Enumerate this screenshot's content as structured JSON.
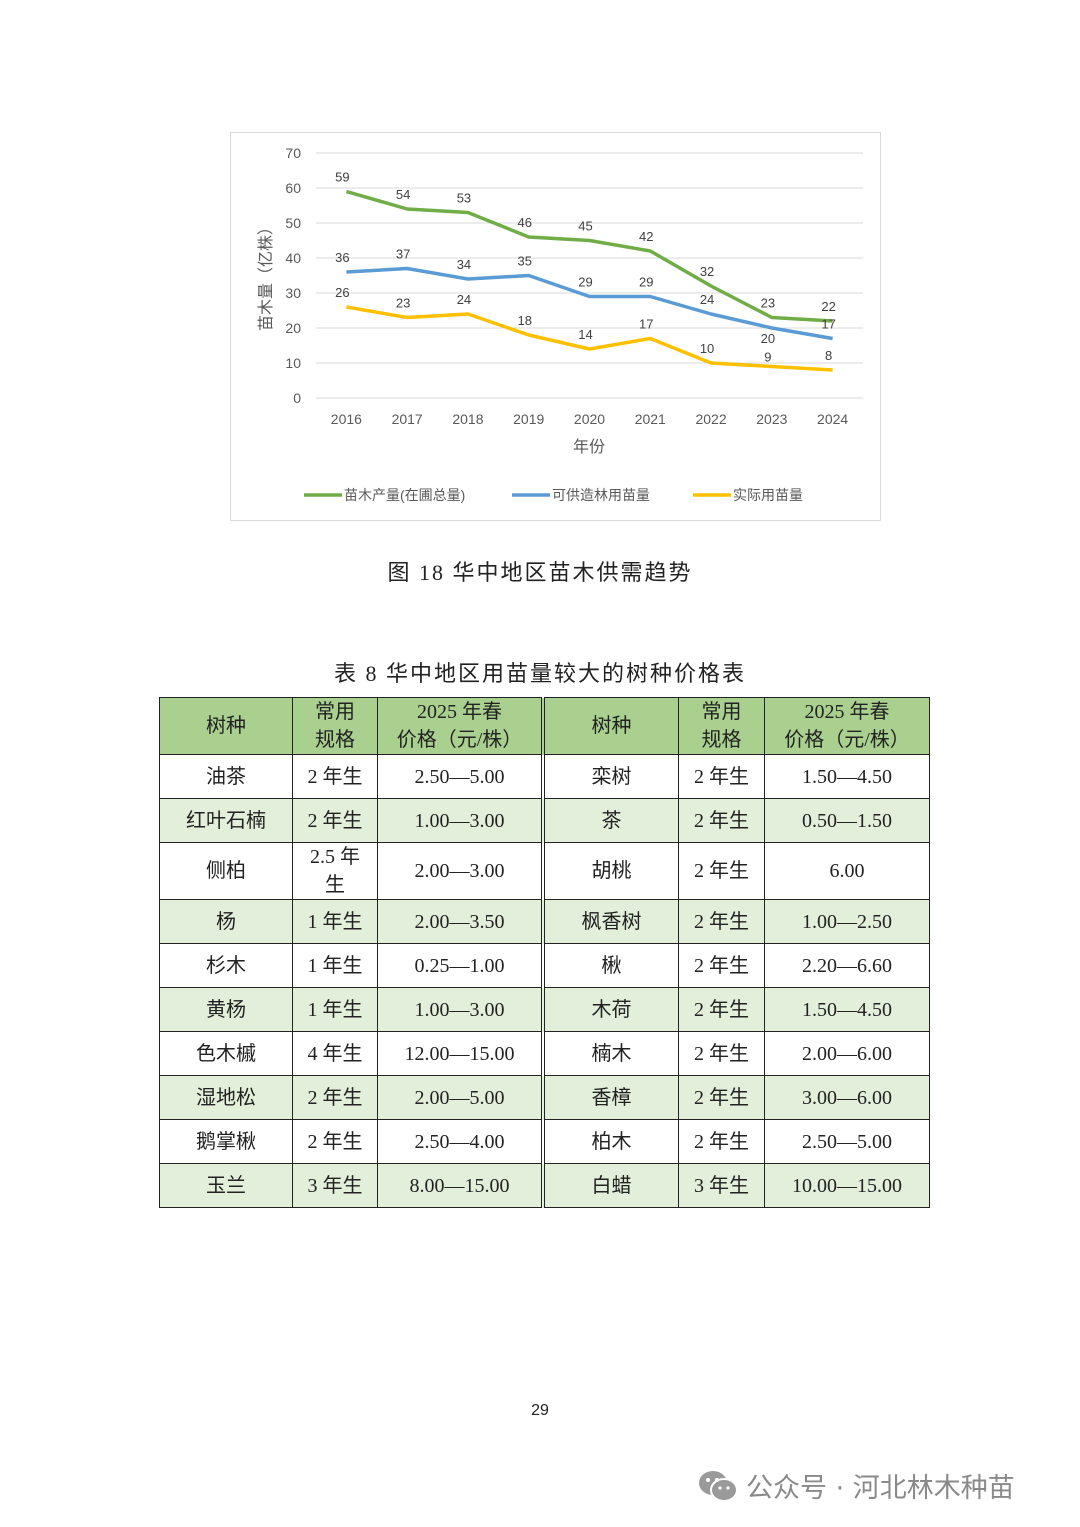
{
  "chart_data": {
    "type": "line",
    "x": [
      "2016",
      "2017",
      "2018",
      "2019",
      "2020",
      "2021",
      "2022",
      "2023",
      "2024"
    ],
    "xlabel": "年份",
    "ylabel": "苗木量（亿株）",
    "ylim": [
      0,
      70
    ],
    "yticks": [
      0,
      10,
      20,
      30,
      40,
      50,
      60,
      70
    ],
    "grid": true,
    "legend": "bottom",
    "series": [
      {
        "name": "苗木产量(在圃总量)",
        "color": "#70ad47",
        "values": [
          59,
          54,
          53,
          46,
          45,
          42,
          32,
          23,
          22
        ]
      },
      {
        "name": "可供造林用苗量",
        "color": "#5b9bd5",
        "values": [
          36,
          37,
          34,
          35,
          29,
          29,
          24,
          20,
          17
        ]
      },
      {
        "name": "实际用苗量",
        "color": "#ffc000",
        "values": [
          26,
          23,
          24,
          18,
          14,
          17,
          10,
          9,
          8
        ]
      }
    ]
  },
  "figure_caption": "图 18  华中地区苗木供需趋势",
  "table_caption": "表 8  华中地区用苗量较大的树种价格表",
  "table": {
    "headers": [
      "树种",
      "常用\n规格",
      "2025 年春\n价格（元/株）",
      "树种",
      "常用\n规格",
      "2025 年春\n价格（元/株）"
    ],
    "rows": [
      [
        "油茶",
        "2 年生",
        "2.50—5.00",
        "栾树",
        "2 年生",
        "1.50—4.50"
      ],
      [
        "红叶石楠",
        "2 年生",
        "1.00—3.00",
        "茶",
        "2 年生",
        "0.50—1.50"
      ],
      [
        "侧柏",
        "2.5 年\n生",
        "2.00—3.00",
        "胡桃",
        "2 年生",
        "6.00"
      ],
      [
        "杨",
        "1 年生",
        "2.00—3.50",
        "枫香树",
        "2 年生",
        "1.00—2.50"
      ],
      [
        "杉木",
        "1 年生",
        "0.25—1.00",
        "楸",
        "2 年生",
        "2.20—6.60"
      ],
      [
        "黄杨",
        "1 年生",
        "1.00—3.00",
        "木荷",
        "2 年生",
        "1.50—4.50"
      ],
      [
        "色木槭",
        "4 年生",
        "12.00—15.00",
        "楠木",
        "2 年生",
        "2.00—6.00"
      ],
      [
        "湿地松",
        "2 年生",
        "2.00—5.00",
        "香樟",
        "2 年生",
        "3.00—6.00"
      ],
      [
        "鹅掌楸",
        "2 年生",
        "2.50—4.00",
        "柏木",
        "2 年生",
        "2.50—5.00"
      ],
      [
        "玉兰",
        "3 年生",
        "8.00—15.00",
        "白蜡",
        "3 年生",
        "10.00—15.00"
      ]
    ]
  },
  "page_number": "29",
  "watermark": {
    "icon": "wechat-icon",
    "text": "公众号 · 河北林木种苗"
  }
}
